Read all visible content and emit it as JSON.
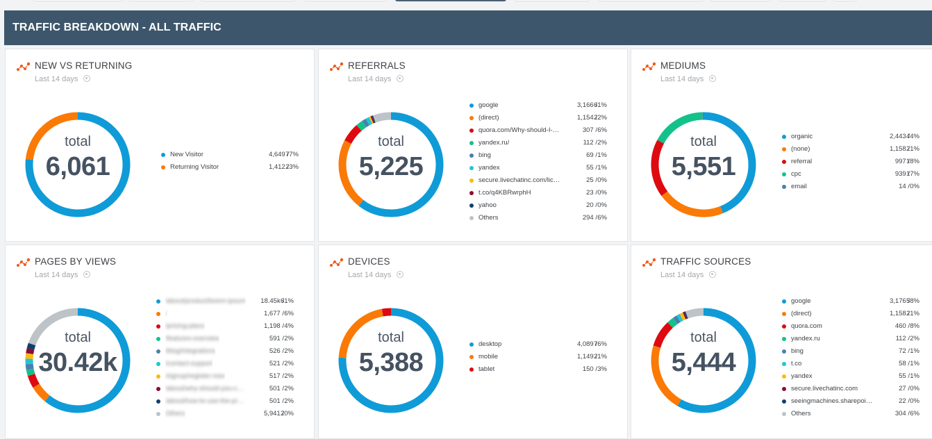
{
  "header": {
    "title": "TRAFFIC BREAKDOWN - ALL TRAFFIC"
  },
  "colors": {
    "header_bg": "#3d566b",
    "accent_icon": "#f05a1a",
    "palette": [
      "#0f9bd7",
      "#fb7a05",
      "#dd0a0f",
      "#13c18b",
      "#4a7fb0",
      "#1fc5d4",
      "#fdb913",
      "#8b0c34",
      "#0f3f6e",
      "#bdc3c7"
    ]
  },
  "cards": [
    {
      "title": "NEW VS RETURNING",
      "subtitle": "Last 14 days",
      "total_label": "total",
      "total": "6,061",
      "items": [
        {
          "name": "New Visitor",
          "value": "4,649",
          "pct": "77%",
          "color": "#0f9bd7",
          "share": 76.7
        },
        {
          "name": "Returning Visitor",
          "value": "1,412",
          "pct": "23%",
          "color": "#fb7a05",
          "share": 23.3
        }
      ]
    },
    {
      "title": "REFERRALS",
      "subtitle": "Last 14 days",
      "total_label": "total",
      "total": "5,225",
      "items": [
        {
          "name": "google",
          "value": "3,166",
          "pct": "61%",
          "color": "#0f9bd7",
          "share": 60.6
        },
        {
          "name": "(direct)",
          "value": "1,154",
          "pct": "22%",
          "color": "#fb7a05",
          "share": 22.1
        },
        {
          "name": "quora.com/Why-should-I-u...",
          "value": "307",
          "pct": "6%",
          "color": "#dd0a0f",
          "share": 5.9
        },
        {
          "name": "yandex.ru/",
          "value": "112",
          "pct": "2%",
          "color": "#13c18b",
          "share": 2.1
        },
        {
          "name": "bing",
          "value": "69",
          "pct": "1%",
          "color": "#4a7fb0",
          "share": 1.3
        },
        {
          "name": "yandex",
          "value": "55",
          "pct": "1%",
          "color": "#1fc5d4",
          "share": 1.1
        },
        {
          "name": "secure.livechatinc.com/lice...",
          "value": "25",
          "pct": "0%",
          "color": "#fdb913",
          "share": 0.5
        },
        {
          "name": "t.co/q4KBRwrphH",
          "value": "23",
          "pct": "0%",
          "color": "#8b0c34",
          "share": 0.4
        },
        {
          "name": "yahoo",
          "value": "20",
          "pct": "0%",
          "color": "#0f3f6e",
          "share": 0.4
        },
        {
          "name": "Others",
          "value": "294",
          "pct": "6%",
          "color": "#bdc3c7",
          "share": 5.6
        }
      ]
    },
    {
      "title": "MEDIUMS",
      "subtitle": "Last 14 days",
      "total_label": "total",
      "total": "5,551",
      "items": [
        {
          "name": "organic",
          "value": "2,443",
          "pct": "44%",
          "color": "#0f9bd7",
          "share": 44.0
        },
        {
          "name": "(none)",
          "value": "1,158",
          "pct": "21%",
          "color": "#fb7a05",
          "share": 20.9
        },
        {
          "name": "referral",
          "value": "997",
          "pct": "18%",
          "color": "#dd0a0f",
          "share": 18.0
        },
        {
          "name": "cpc",
          "value": "939",
          "pct": "17%",
          "color": "#13c18b",
          "share": 16.9
        },
        {
          "name": "email",
          "value": "14",
          "pct": "0%",
          "color": "#4a7fb0",
          "share": 0.3
        }
      ]
    },
    {
      "title": "PAGES BY VIEWS",
      "subtitle": "Last 14 days",
      "total_label": "total",
      "total": "30.42k",
      "items": [
        {
          "name": "/about/product/lorem-ipsum",
          "value": "18.45k",
          "pct": "61%",
          "color": "#0f9bd7",
          "share": 60.7,
          "blurred": true
        },
        {
          "name": "/",
          "value": "1,677",
          "pct": "6%",
          "color": "#fb7a05",
          "share": 5.5,
          "blurred": true
        },
        {
          "name": "/pricing-plans",
          "value": "1,198",
          "pct": "4%",
          "color": "#dd0a0f",
          "share": 3.9,
          "blurred": true
        },
        {
          "name": "/features-overview",
          "value": "591",
          "pct": "2%",
          "color": "#13c18b",
          "share": 1.9,
          "blurred": true
        },
        {
          "name": "/blog/integrations",
          "value": "526",
          "pct": "2%",
          "color": "#4a7fb0",
          "share": 1.7,
          "blurred": true
        },
        {
          "name": "/contact-support",
          "value": "521",
          "pct": "2%",
          "color": "#1fc5d4",
          "share": 1.7,
          "blurred": true
        },
        {
          "name": "/signup/register-now",
          "value": "517",
          "pct": "2%",
          "color": "#fdb913",
          "share": 1.7,
          "blurred": true
        },
        {
          "name": "/about/why-should-you-choose-our-tool...",
          "value": "501",
          "pct": "2%",
          "color": "#8b0c34",
          "share": 1.6,
          "blurred": true
        },
        {
          "name": "/about/how-to-use-the-product-guide...",
          "value": "501",
          "pct": "2%",
          "color": "#0f3f6e",
          "share": 1.6,
          "blurred": true
        },
        {
          "name": "Others",
          "value": "5,941",
          "pct": "20%",
          "color": "#bdc3c7",
          "share": 19.5,
          "blurred": true
        }
      ]
    },
    {
      "title": "DEVICES",
      "subtitle": "Last 14 days",
      "total_label": "total",
      "total": "5,388",
      "items": [
        {
          "name": "desktop",
          "value": "4,089",
          "pct": "76%",
          "color": "#0f9bd7",
          "share": 75.9
        },
        {
          "name": "mobile",
          "value": "1,149",
          "pct": "21%",
          "color": "#fb7a05",
          "share": 21.3
        },
        {
          "name": "tablet",
          "value": "150",
          "pct": "3%",
          "color": "#dd0a0f",
          "share": 2.8
        }
      ]
    },
    {
      "title": "TRAFFIC SOURCES",
      "subtitle": "Last 14 days",
      "total_label": "total",
      "total": "5,444",
      "items": [
        {
          "name": "google",
          "value": "3,176",
          "pct": "58%",
          "color": "#0f9bd7",
          "share": 58.3
        },
        {
          "name": "(direct)",
          "value": "1,158",
          "pct": "21%",
          "color": "#fb7a05",
          "share": 21.3
        },
        {
          "name": "quora.com",
          "value": "460",
          "pct": "8%",
          "color": "#dd0a0f",
          "share": 8.4
        },
        {
          "name": "yandex.ru",
          "value": "112",
          "pct": "2%",
          "color": "#13c18b",
          "share": 2.1
        },
        {
          "name": "bing",
          "value": "72",
          "pct": "1%",
          "color": "#4a7fb0",
          "share": 1.3
        },
        {
          "name": "t.co",
          "value": "58",
          "pct": "1%",
          "color": "#1fc5d4",
          "share": 1.1
        },
        {
          "name": "yandex",
          "value": "55",
          "pct": "1%",
          "color": "#fdb913",
          "share": 1.0
        },
        {
          "name": "secure.livechatinc.com",
          "value": "27",
          "pct": "0%",
          "color": "#8b0c34",
          "share": 0.5
        },
        {
          "name": "seeingmachines.sharepoint...",
          "value": "22",
          "pct": "0%",
          "color": "#0f3f6e",
          "share": 0.4
        },
        {
          "name": "Others",
          "value": "304",
          "pct": "6%",
          "color": "#bdc3c7",
          "share": 5.6
        }
      ]
    }
  ]
}
